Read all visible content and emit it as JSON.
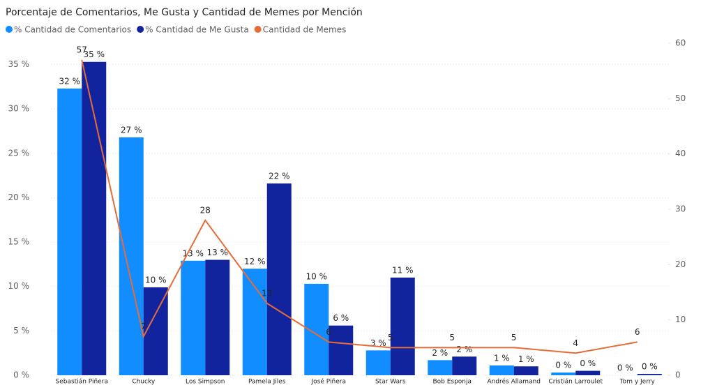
{
  "chart_data": {
    "type": "combo",
    "title": "Porcentaje de Comentarios, Me Gusta y Cantidad de Memes por Mención",
    "categories": [
      "Sebastián Piñera",
      "Chucky",
      "Los Simpson",
      "Pamela Jiles",
      "José Piñera",
      "Star Wars",
      "Bob Esponja",
      "Andrés Allamand",
      "Cristián Larroulet",
      "Tom y Jerry"
    ],
    "series": [
      {
        "name": "% Cantidad de Comentarios",
        "color": "#118DFF",
        "kind": "bar",
        "values": [
          32.3,
          26.8,
          12.9,
          12.0,
          10.3,
          2.8,
          1.7,
          1.1,
          0.3,
          0
        ],
        "value_labels": [
          "32 %",
          "27 %",
          "13 %",
          "12 %",
          "10 %",
          "3 %",
          "2 %",
          "1 %",
          "0 %",
          "0 %"
        ]
      },
      {
        "name": "% Cantidad de Me Gusta",
        "color": "#12239E",
        "kind": "bar",
        "values": [
          35.3,
          9.9,
          13.0,
          21.6,
          5.6,
          11.0,
          2.1,
          1.0,
          0.5,
          0.15
        ],
        "value_labels": [
          "35 %",
          "10 %",
          "13 %",
          "22 %",
          "6 %",
          "11 %",
          "2 %",
          "1 %",
          "0 %",
          "0 %"
        ]
      },
      {
        "name": "Cantidad de Memes",
        "color": "#E66C37",
        "kind": "line",
        "axis": "y2",
        "values": [
          57,
          7,
          28,
          13,
          6,
          5,
          5,
          5,
          4,
          6
        ]
      }
    ],
    "ylim": [
      0,
      37.4
    ],
    "yticks": [
      {
        "value": 0,
        "label": "0 %"
      },
      {
        "value": 5,
        "label": "5 %"
      },
      {
        "value": 10,
        "label": "10 %"
      },
      {
        "value": 15,
        "label": "15 %"
      },
      {
        "value": 20,
        "label": "20 %"
      },
      {
        "value": 25,
        "label": "25 %"
      },
      {
        "value": 30,
        "label": "30 %"
      },
      {
        "value": 35,
        "label": "35 %"
      }
    ],
    "y2lim": [
      0,
      60
    ],
    "y2ticks": [
      0,
      10,
      20,
      30,
      40,
      50,
      60
    ],
    "grid": true,
    "legend": "top-left"
  }
}
